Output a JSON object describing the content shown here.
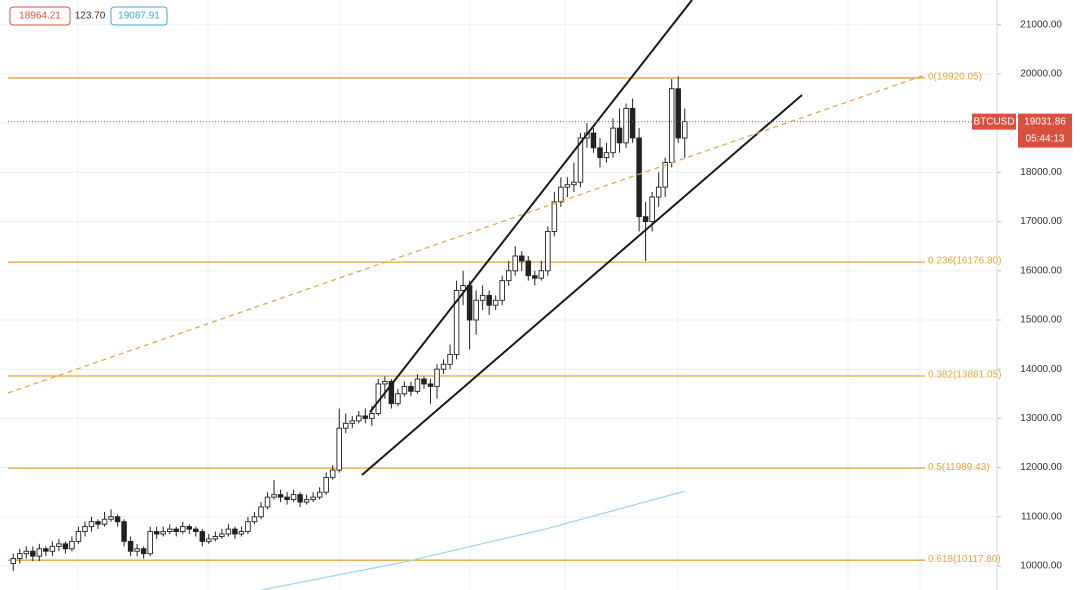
{
  "chart_data": {
    "type": "candlestick",
    "symbol": "BTCUSD",
    "header_values": [
      "18964.21",
      "123.70",
      "19087.91"
    ],
    "last_price": 19031.86,
    "countdown": "05:44:13",
    "ylim": [
      9512,
      21504
    ],
    "yticks": [
      {
        "value": 10000,
        "label": "10000.00"
      },
      {
        "value": 11000,
        "label": "11000.00"
      },
      {
        "value": 12000,
        "label": "12000.00"
      },
      {
        "value": 13000,
        "label": "13000.00"
      },
      {
        "value": 14000,
        "label": "14000.00"
      },
      {
        "value": 15000,
        "label": "15000.00"
      },
      {
        "value": 16000,
        "label": "16000.00"
      },
      {
        "value": 17000,
        "label": "17000.00"
      },
      {
        "value": 18000,
        "label": "18000.00"
      },
      {
        "value": 19000,
        "label": "19000.00"
      },
      {
        "value": 20000,
        "label": "20000.00"
      },
      {
        "value": 21000,
        "label": "21000.00"
      }
    ],
    "fib_levels": [
      {
        "value": 19920.05,
        "label": "0(19920.05)"
      },
      {
        "value": 16176.8,
        "label": "0.236(16176.80)"
      },
      {
        "value": 13861.05,
        "label": "0.382(13861.05)"
      },
      {
        "value": 11989.43,
        "label": "0.5(11989.43)"
      },
      {
        "value": 10117.8,
        "label": "0.618(10117.80)"
      }
    ],
    "fib_color": "#e3a43a",
    "up_color": "#ffffff",
    "down_color": "#222222",
    "ma_color": "#9fd3ec",
    "price_color": "#d9503f",
    "ohlc": [
      [
        10050,
        10250,
        9900,
        10150
      ],
      [
        10150,
        10350,
        10050,
        10250
      ],
      [
        10250,
        10400,
        10150,
        10300
      ],
      [
        10300,
        10400,
        10100,
        10200
      ],
      [
        10200,
        10450,
        10100,
        10350
      ],
      [
        10350,
        10400,
        10200,
        10300
      ],
      [
        10300,
        10500,
        10200,
        10400
      ],
      [
        10400,
        10550,
        10300,
        10450
      ],
      [
        10450,
        10500,
        10250,
        10350
      ],
      [
        10350,
        10600,
        10300,
        10500
      ],
      [
        10500,
        10800,
        10450,
        10700
      ],
      [
        10700,
        10900,
        10600,
        10800
      ],
      [
        10800,
        11000,
        10700,
        10900
      ],
      [
        10900,
        10950,
        10750,
        10850
      ],
      [
        10850,
        11100,
        10800,
        10950
      ],
      [
        10950,
        11150,
        10900,
        11000
      ],
      [
        11000,
        11050,
        10800,
        10900
      ],
      [
        10900,
        10950,
        10400,
        10500
      ],
      [
        10500,
        10600,
        10200,
        10300
      ],
      [
        10300,
        10450,
        10200,
        10350
      ],
      [
        10350,
        10400,
        10150,
        10250
      ],
      [
        10250,
        10800,
        10200,
        10700
      ],
      [
        10700,
        10800,
        10550,
        10650
      ],
      [
        10650,
        10800,
        10600,
        10700
      ],
      [
        10700,
        10850,
        10650,
        10750
      ],
      [
        10750,
        10800,
        10600,
        10700
      ],
      [
        10700,
        10900,
        10650,
        10800
      ],
      [
        10800,
        10850,
        10650,
        10750
      ],
      [
        10750,
        10800,
        10600,
        10700
      ],
      [
        10700,
        10750,
        10400,
        10500
      ],
      [
        10500,
        10650,
        10450,
        10550
      ],
      [
        10550,
        10700,
        10500,
        10600
      ],
      [
        10600,
        10750,
        10550,
        10650
      ],
      [
        10650,
        10850,
        10600,
        10750
      ],
      [
        10750,
        10800,
        10550,
        10650
      ],
      [
        10650,
        10800,
        10600,
        10700
      ],
      [
        10700,
        11000,
        10650,
        10900
      ],
      [
        10900,
        11100,
        10850,
        11000
      ],
      [
        11000,
        11300,
        10950,
        11200
      ],
      [
        11200,
        11500,
        11150,
        11400
      ],
      [
        11400,
        11750,
        11350,
        11450
      ],
      [
        11450,
        11550,
        11300,
        11400
      ],
      [
        11400,
        11500,
        11250,
        11350
      ],
      [
        11350,
        11550,
        11300,
        11450
      ],
      [
        11450,
        11500,
        11200,
        11300
      ],
      [
        11300,
        11450,
        11250,
        11350
      ],
      [
        11350,
        11500,
        11300,
        11400
      ],
      [
        11400,
        11600,
        11350,
        11500
      ],
      [
        11500,
        11900,
        11450,
        11800
      ],
      [
        11800,
        12050,
        11750,
        11950
      ],
      [
        11950,
        13200,
        11900,
        12800
      ],
      [
        12800,
        13100,
        12700,
        12900
      ],
      [
        12900,
        13050,
        12800,
        12950
      ],
      [
        12950,
        13150,
        12900,
        13050
      ],
      [
        13050,
        13200,
        12900,
        13000
      ],
      [
        13000,
        13250,
        12850,
        13100
      ],
      [
        13100,
        13800,
        13050,
        13700
      ],
      [
        13700,
        13850,
        13400,
        13750
      ],
      [
        13750,
        13800,
        13200,
        13300
      ],
      [
        13300,
        13600,
        13250,
        13500
      ],
      [
        13500,
        13750,
        13450,
        13650
      ],
      [
        13650,
        13750,
        13450,
        13550
      ],
      [
        13550,
        13900,
        13500,
        13800
      ],
      [
        13800,
        13850,
        13600,
        13700
      ],
      [
        13700,
        13800,
        13300,
        13650
      ],
      [
        13650,
        14100,
        13400,
        14000
      ],
      [
        14000,
        14200,
        13900,
        14100
      ],
      [
        14100,
        14500,
        14000,
        14300
      ],
      [
        14300,
        15800,
        14200,
        15600
      ],
      [
        15600,
        16000,
        15300,
        15700
      ],
      [
        15700,
        15800,
        14400,
        15000
      ],
      [
        15000,
        15600,
        14700,
        15400
      ],
      [
        15400,
        15700,
        15200,
        15500
      ],
      [
        15500,
        15600,
        15100,
        15300
      ],
      [
        15300,
        15500,
        15200,
        15400
      ],
      [
        15400,
        15900,
        15300,
        15800
      ],
      [
        15800,
        16200,
        15700,
        16000
      ],
      [
        16000,
        16500,
        15900,
        16300
      ],
      [
        16300,
        16400,
        16000,
        16200
      ],
      [
        16200,
        16300,
        15800,
        15900
      ],
      [
        15900,
        16000,
        15700,
        15850
      ],
      [
        15850,
        16200,
        15800,
        16000
      ],
      [
        16000,
        16900,
        15900,
        16800
      ],
      [
        16800,
        17600,
        16700,
        17400
      ],
      [
        17400,
        17900,
        17300,
        17700
      ],
      [
        17700,
        17900,
        17500,
        17750
      ],
      [
        17750,
        18200,
        17600,
        17800
      ],
      [
        17800,
        18800,
        17700,
        18700
      ],
      [
        18700,
        19000,
        18500,
        18800
      ],
      [
        18800,
        18900,
        18400,
        18500
      ],
      [
        18500,
        18700,
        18100,
        18300
      ],
      [
        18300,
        18600,
        18200,
        18400
      ],
      [
        18400,
        19100,
        18300,
        18900
      ],
      [
        18900,
        19300,
        18400,
        18600
      ],
      [
        18600,
        19400,
        18500,
        19300
      ],
      [
        19300,
        19500,
        18600,
        18700
      ],
      [
        18700,
        18900,
        16800,
        17100
      ],
      [
        17100,
        17400,
        16200,
        17000
      ],
      [
        17000,
        17600,
        16800,
        17500
      ],
      [
        17500,
        18000,
        17300,
        17700
      ],
      [
        17700,
        18300,
        17500,
        18200
      ],
      [
        18200,
        19900,
        18100,
        19700
      ],
      [
        19700,
        19950,
        18600,
        18700
      ],
      [
        18700,
        19300,
        18300,
        19031.86
      ]
    ],
    "ma": [
      null,
      null,
      null,
      null,
      null,
      null,
      null,
      null,
      null,
      null,
      null,
      null,
      null,
      null,
      null,
      null,
      null,
      null,
      null,
      null,
      null,
      null,
      null,
      null,
      null,
      null,
      null,
      null,
      null,
      null,
      null,
      null,
      null,
      null,
      null,
      null,
      null,
      null,
      9510,
      9536,
      9562,
      9588,
      9614,
      9640,
      9666,
      9692,
      9718,
      9744,
      9770,
      9796,
      9822,
      9848,
      9874,
      9900,
      9926,
      9952,
      9978,
      10004,
      10030,
      10056,
      10082,
      10113,
      10144,
      10175,
      10206,
      10237,
      10268,
      10299,
      10330,
      10361,
      10392,
      10423,
      10454,
      10485,
      10516,
      10547,
      10578,
      10609,
      10640,
      10671,
      10702,
      10733,
      10764,
      10800,
      10836,
      10872,
      10908,
      10944,
      10980,
      11016,
      11052,
      11088,
      11124,
      11160,
      11196,
      11232,
      11268,
      11304,
      11340,
      11376,
      11412,
      11448,
      11484,
      11520
    ]
  }
}
